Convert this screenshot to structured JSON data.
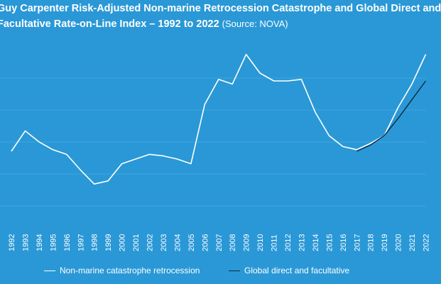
{
  "header": {
    "title_line1": "Guy Carpenter Risk-Adjusted Non-marine Retrocession Catastrophe and Global Direct and",
    "title_line2": "Facultative Rate-on-Line Index – 1992 to 2022",
    "source": "(Source: NOVA)"
  },
  "colors": {
    "background": "#2a98d6",
    "gridline": "#3fa4dc",
    "retro_line": "#ffffff",
    "direct_line": "#0f2a44",
    "text": "#ffffff"
  },
  "chart_data": {
    "type": "line",
    "title": "Guy Carpenter Risk-Adjusted Non-marine Retrocession Catastrophe and Global Direct and Facultative Rate-on-Line Index – 1992 to 2022 (Source: NOVA)",
    "xlabel": "",
    "ylabel": "",
    "x": [
      "1992",
      "1993",
      "1994",
      "1995",
      "1996",
      "1997",
      "1998",
      "1999",
      "2000",
      "2001",
      "2002",
      "2003",
      "2004",
      "2005",
      "2006",
      "2007",
      "2008",
      "2009",
      "2010",
      "2011",
      "2012",
      "2013",
      "2014",
      "2015",
      "2016",
      "2017",
      "2018",
      "2019",
      "2020",
      "2021",
      "2022"
    ],
    "ylim": [
      0,
      100
    ],
    "grid": true,
    "legend_position": "bottom",
    "series": [
      {
        "name": "Non-marine catastrophe retrocession",
        "color": "#ffffff",
        "values": [
          35,
          48,
          41,
          36,
          33,
          23,
          14,
          16,
          27,
          30,
          33,
          32,
          30,
          27,
          65,
          81,
          78,
          97,
          85,
          80,
          80,
          81,
          60,
          45,
          38,
          36,
          40,
          45,
          63,
          78,
          97
        ]
      },
      {
        "name": "Global direct and facultative",
        "color": "#0f2a44",
        "values": [
          null,
          null,
          null,
          null,
          null,
          null,
          null,
          null,
          null,
          null,
          null,
          null,
          null,
          null,
          null,
          null,
          null,
          null,
          null,
          null,
          null,
          null,
          null,
          null,
          null,
          35,
          39,
          45,
          56,
          68,
          80
        ]
      }
    ]
  }
}
